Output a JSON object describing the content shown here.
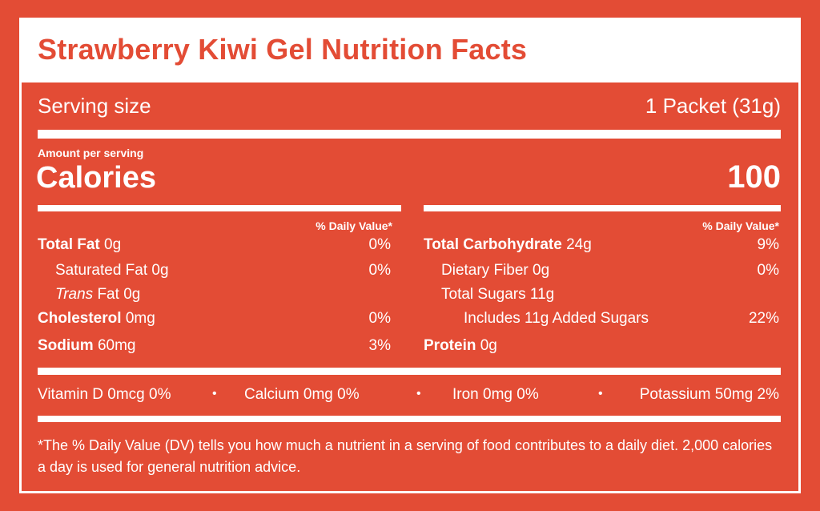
{
  "title": "Strawberry Kiwi Gel Nutrition Facts",
  "serving": {
    "label": "Serving size",
    "value": "1 Packet (31g)"
  },
  "amount_per_serving": "Amount per serving",
  "calories": {
    "label": "Calories",
    "value": "100"
  },
  "daily_value_header": "% Daily Value*",
  "left_column": [
    {
      "name": "Total Fat",
      "amount": "0g",
      "dv": "0%"
    },
    {
      "name": "Saturated Fat",
      "amount": "0g",
      "dv": "0%"
    },
    {
      "name_italic": "Trans",
      "name_rest": "Fat",
      "amount": "0g",
      "dv": ""
    },
    {
      "name": "Cholesterol",
      "amount": "0mg",
      "dv": "0%"
    },
    {
      "name": "Sodium",
      "amount": "60mg",
      "dv": "3%"
    }
  ],
  "right_column": [
    {
      "name": "Total Carbohydrate",
      "amount": "24g",
      "dv": "9%"
    },
    {
      "name": "Dietary Fiber",
      "amount": "0g",
      "dv": "0%"
    },
    {
      "name": "Total Sugars",
      "amount": "11g",
      "dv": ""
    },
    {
      "name": "Includes 11g Added Sugars",
      "amount": "",
      "dv": "22%"
    },
    {
      "name": "Protein",
      "amount": "0g",
      "dv": ""
    }
  ],
  "micronutrients": [
    "Vitamin D 0mcg 0%",
    "Calcium 0mg 0%",
    "Iron 0mg 0%",
    "Potassium 50mg 2%"
  ],
  "separator": "•",
  "footnote": "*The % Daily Value (DV) tells you how much a nutrient in a serving of food contributes to a daily diet. 2,000 calories a day is used for general nutrition advice.",
  "colors": {
    "background": "#e34c35",
    "foreground": "#ffffff"
  }
}
